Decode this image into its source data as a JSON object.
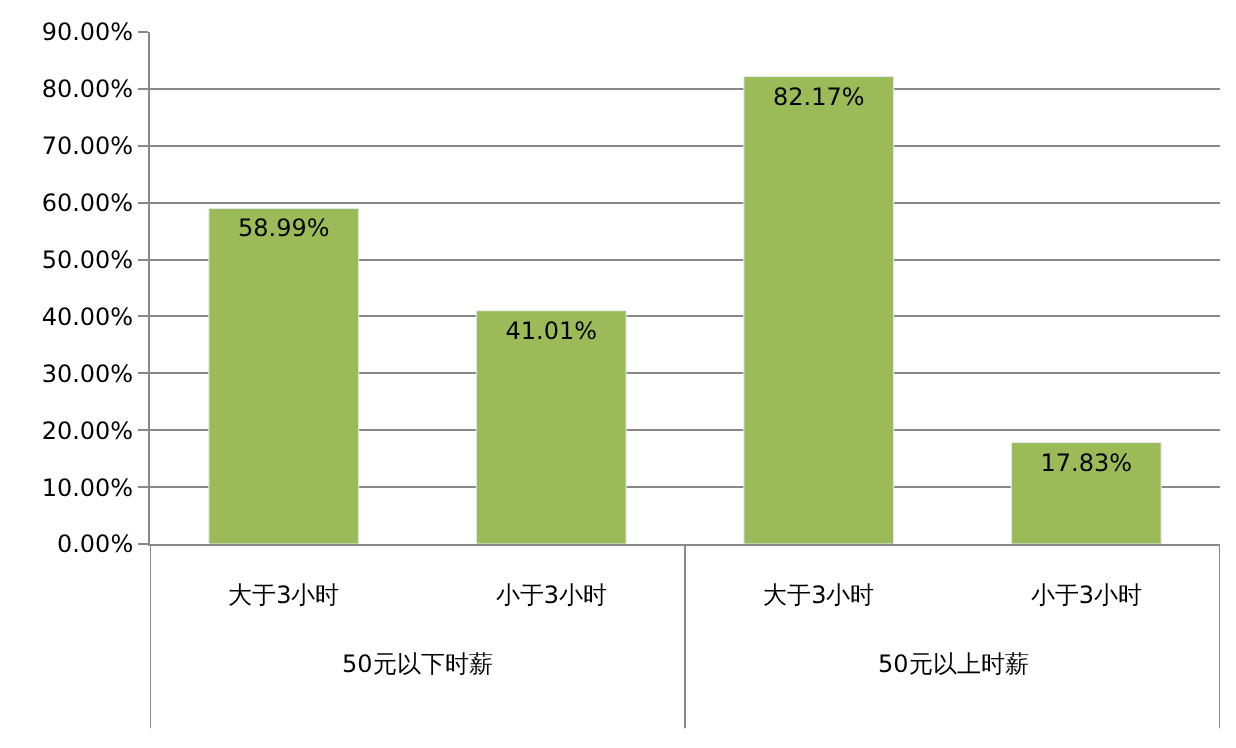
{
  "chart_data": {
    "type": "bar",
    "categories": [
      "大于3小时",
      "小于3小时",
      "大于3小时",
      "小于3小时"
    ],
    "values": [
      58.99,
      41.01,
      82.17,
      17.83
    ],
    "value_labels": [
      "58.99%",
      "41.01%",
      "82.17%",
      "17.83%"
    ],
    "color": "#9bbb59",
    "ylim": [
      0,
      90
    ],
    "yticks": [
      {
        "value": 0,
        "label": "0.00%"
      },
      {
        "value": 10,
        "label": "10.00%"
      },
      {
        "value": 20,
        "label": "20.00%"
      },
      {
        "value": 30,
        "label": "30.00%"
      },
      {
        "value": 40,
        "label": "40.00%"
      },
      {
        "value": 50,
        "label": "50.00%"
      },
      {
        "value": 60,
        "label": "60.00%"
      },
      {
        "value": 70,
        "label": "70.00%"
      },
      {
        "value": 80,
        "label": "80.00%"
      },
      {
        "value": 90,
        "label": "90.00%"
      }
    ],
    "grid": "y",
    "annotations": [
      "50元以下时薪",
      "50元以上时薪"
    ]
  }
}
